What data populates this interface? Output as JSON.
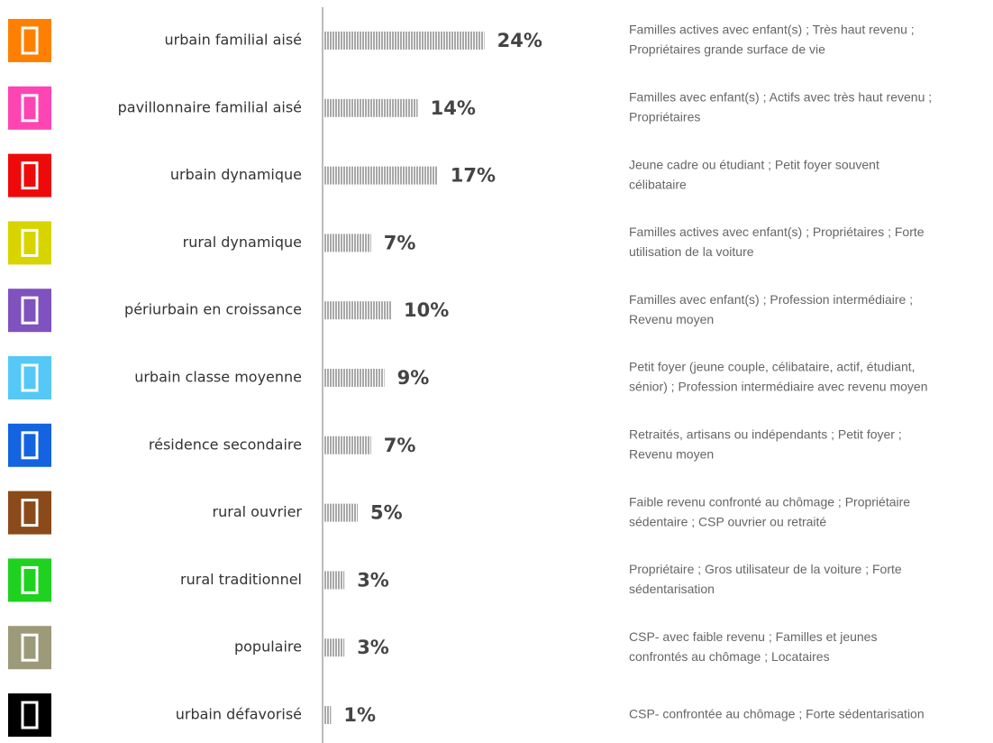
{
  "chart_data": {
    "type": "bar",
    "orientation": "horizontal",
    "categories": [
      "urbain familial aisé",
      "pavillonnaire familial aisé",
      "urbain dynamique",
      "rural dynamique",
      "périurbain en croissance",
      "urbain classe moyenne",
      "résidence secondaire",
      "rural ouvrier",
      "rural traditionnel",
      "populaire",
      "urbain défavorisé"
    ],
    "values": [
      24,
      14,
      17,
      7,
      10,
      9,
      7,
      5,
      3,
      3,
      1
    ],
    "value_labels": [
      "24%",
      "14%",
      "17%",
      "7%",
      "10%",
      "9%",
      "7%",
      "5%",
      "3%",
      "3%",
      "1%"
    ],
    "colors": [
      "#ff8000",
      "#ff44b4",
      "#ee0a0a",
      "#d8d400",
      "#7f52bf",
      "#55c8f7",
      "#1463e0",
      "#8a4a1a",
      "#1fd21f",
      "#9c9a78",
      "#000000"
    ],
    "descriptions": [
      [
        "Familles actives avec enfant(s) ; Très haut revenu ;",
        "Propriétaires grande surface de vie"
      ],
      [
        "Familles avec enfant(s) ; Actifs avec très haut revenu ;",
        "Propriétaires"
      ],
      [
        "Jeune cadre ou étudiant ; Petit foyer souvent",
        "célibataire"
      ],
      [
        "Familles actives avec enfant(s) ; Propriétaires ; Forte",
        "utilisation de la voiture"
      ],
      [
        "Familles avec enfant(s) ; Profession intermédiaire ;",
        "Revenu moyen"
      ],
      [
        "Petit foyer (jeune couple, célibataire, actif, étudiant,",
        "sénior) ; Profession intermédiaire avec revenu moyen"
      ],
      [
        "Retraités, artisans ou indépendants ; Petit foyer ;",
        "Revenu moyen"
      ],
      [
        "Faible revenu confronté au chômage ; Propriétaire",
        "sédentaire ; CSP ouvrier ou retraité"
      ],
      [
        "Propriétaire ; Gros utilisateur de la voiture ; Forte",
        "sédentarisation"
      ],
      [
        "CSP- avec faible revenu ; Familles et jeunes",
        "confrontés au chômage ; Locataires"
      ],
      [
        "CSP- confrontée au chômage ; Forte sédentarisation"
      ]
    ],
    "bar_color": "#a8a8a8"
  }
}
